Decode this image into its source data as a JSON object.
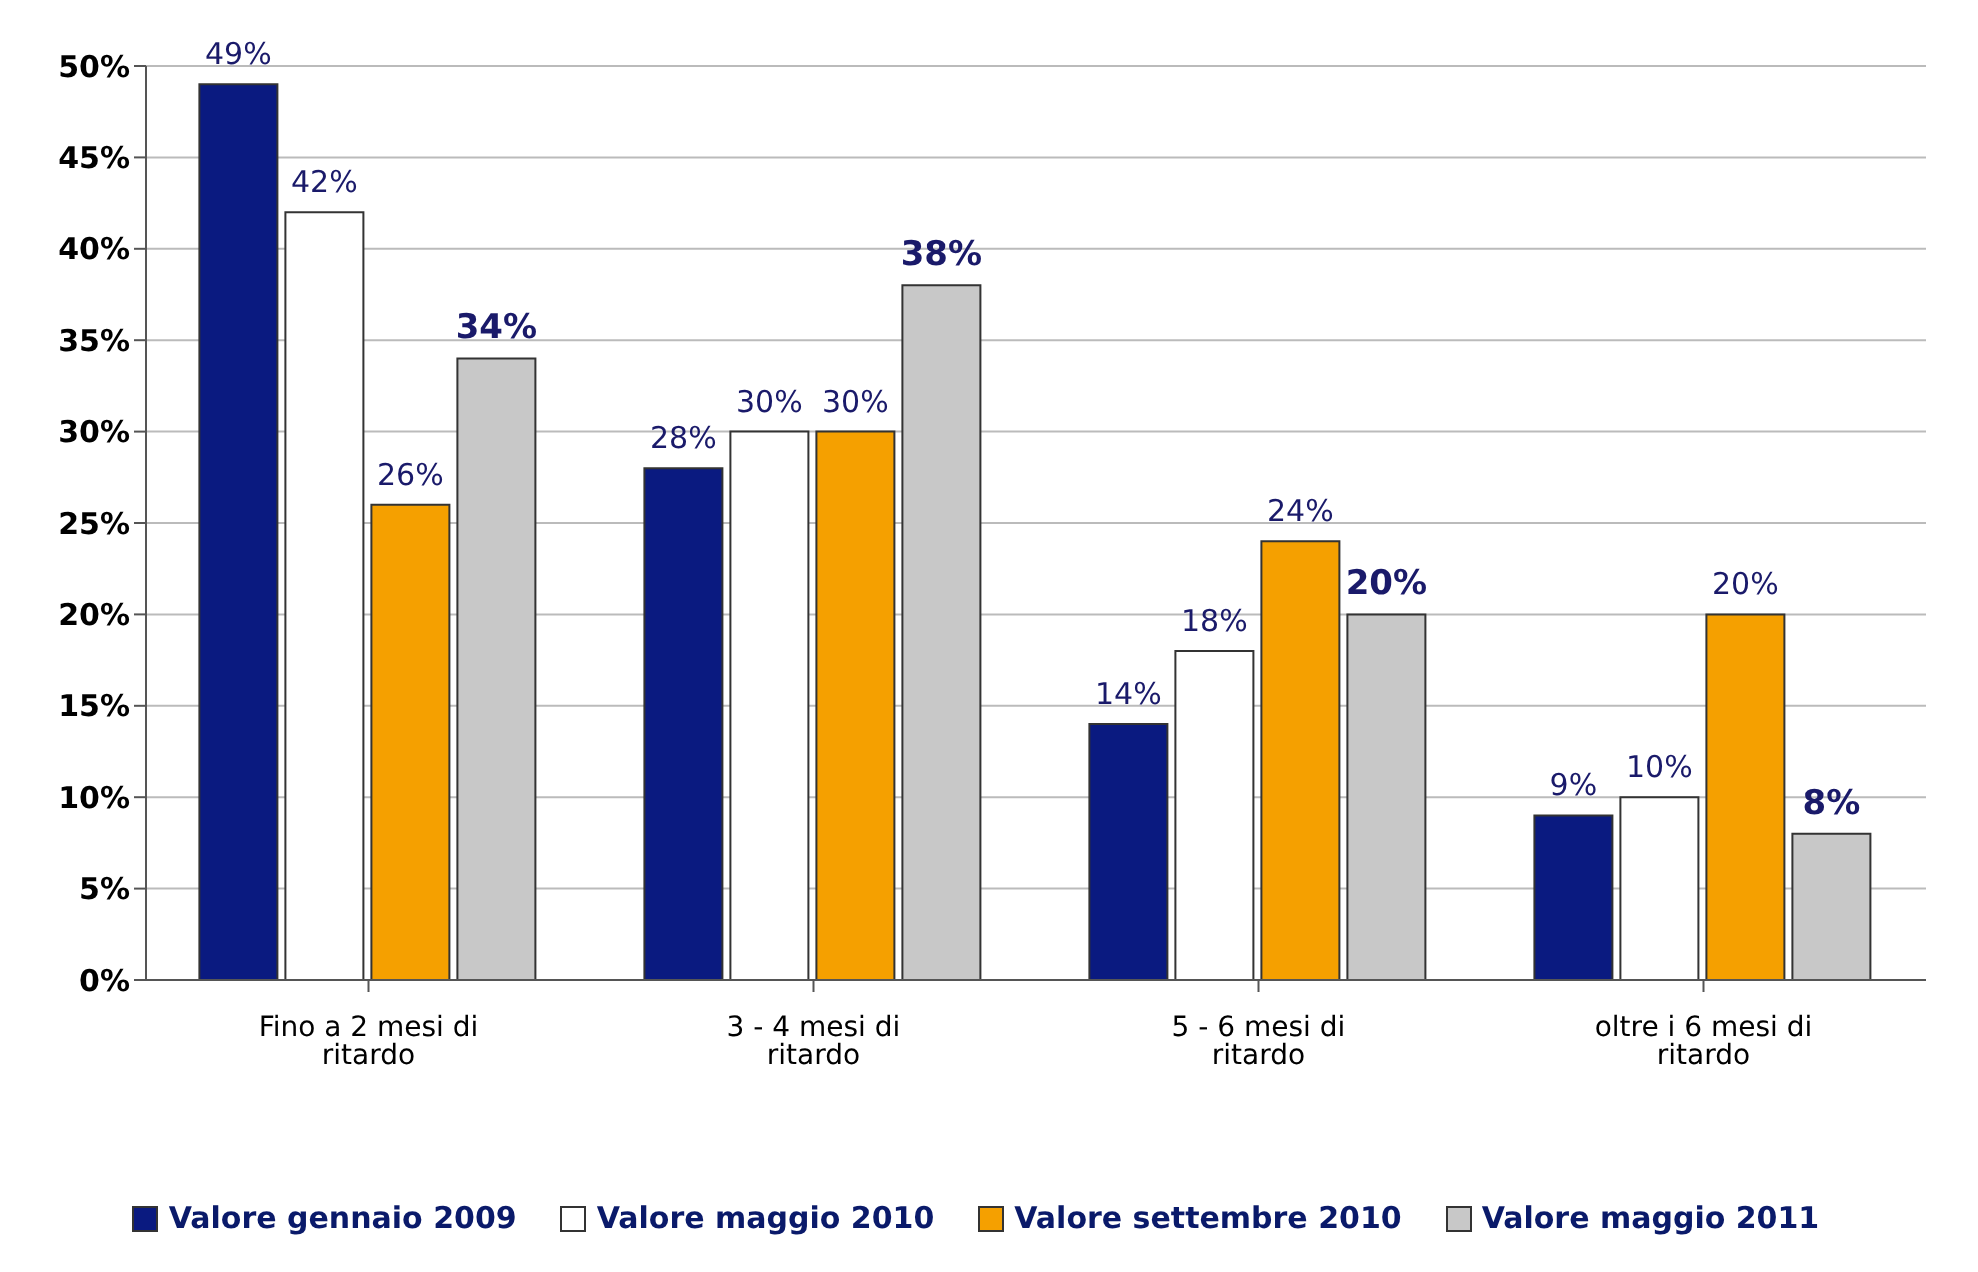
{
  "chart_data": {
    "type": "bar",
    "categories": [
      "Fino a 2 mesi di ritardo",
      "3 - 4 mesi di ritardo",
      "5 - 6 mesi di ritardo",
      "oltre i 6 mesi di ritardo"
    ],
    "series": [
      {
        "name": "Valore gennaio 2009",
        "color": "#0a1a80",
        "values": [
          49,
          28,
          14,
          9
        ],
        "value_labels": [
          "49%",
          "28%",
          "14%",
          "9%"
        ]
      },
      {
        "name": "Valore maggio 2010",
        "color": "#ffffff",
        "values": [
          42,
          30,
          18,
          10
        ],
        "value_labels": [
          "42%",
          "30%",
          "18%",
          "10%"
        ]
      },
      {
        "name": "Valore settembre 2010",
        "color": "#f5a000",
        "values": [
          26,
          30,
          24,
          20
        ],
        "value_labels": [
          "26%",
          "30%",
          "24%",
          "20%"
        ]
      },
      {
        "name": "Valore maggio 2011",
        "color": "#c8c8c8",
        "values": [
          34,
          38,
          20,
          8
        ],
        "value_labels": [
          "34%",
          "38%",
          "20%",
          "8%"
        ]
      }
    ],
    "ylim": [
      0,
      50
    ],
    "yticks": [
      {
        "value": 0,
        "label": "0%"
      },
      {
        "value": 5,
        "label": "5%"
      },
      {
        "value": 10,
        "label": "10%"
      },
      {
        "value": 15,
        "label": "15%"
      },
      {
        "value": 20,
        "label": "20%"
      },
      {
        "value": 25,
        "label": "25%"
      },
      {
        "value": 30,
        "label": "30%"
      },
      {
        "value": 35,
        "label": "35%"
      },
      {
        "value": 40,
        "label": "40%"
      },
      {
        "value": 45,
        "label": "45%"
      },
      {
        "value": 50,
        "label": "50%"
      }
    ],
    "grid": "y",
    "legend": "bottom"
  }
}
